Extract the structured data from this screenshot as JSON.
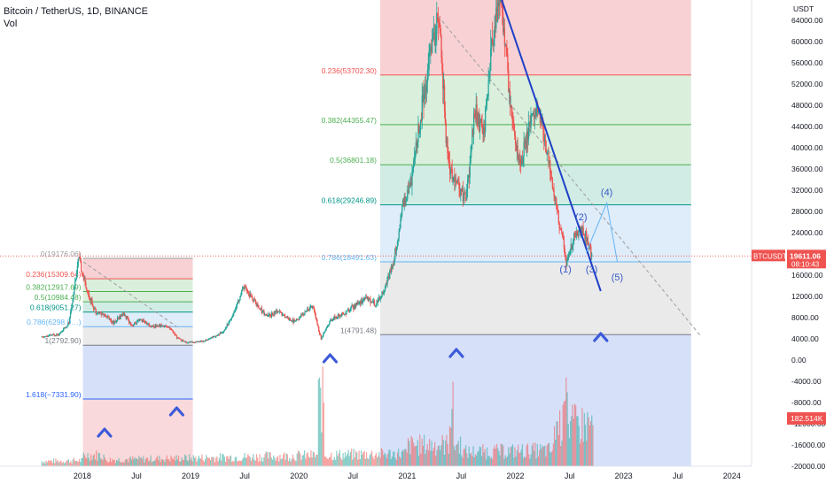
{
  "header": {
    "title": "Bitcoin / TetherUS, 1D, BINANCE",
    "vol_label": "Vol"
  },
  "colors": {
    "up": "#26a69a",
    "down": "#ef5350",
    "trendline": "#1e40c8",
    "accent": "#3d5ad9",
    "price_tag": "#ef5350",
    "volume_tag": "#ef5350",
    "fib_red": "#f6c9cc",
    "fib_green": "#d4ecd6",
    "fib_teal": "#c9e9df",
    "fib_blue": "#d9e9f8",
    "fib_gray": "#e6e6e6",
    "fib_ext": "#cfdbf8"
  },
  "chart_data": {
    "type": "candlestick",
    "symbol": "BTCUSDT",
    "interval": "1D",
    "exchange": "BINANCE",
    "y_axis_label": "USDT",
    "y_ticks": [
      "64000.00",
      "60000.00",
      "56000.00",
      "52000.00",
      "48000.00",
      "44000.00",
      "40000.00",
      "36000.00",
      "32000.00",
      "28000.00",
      "24000.00",
      "20000.00",
      "16000.00",
      "12000.00",
      "8000.00",
      "4000.00",
      "0.00",
      "-4000.00",
      "-8000.00",
      "-12000.00",
      "-16000.00",
      "-20000.00"
    ],
    "y_range": [
      -20000,
      70000
    ],
    "x_ticks": [
      "2018",
      "Jul",
      "2019",
      "Jul",
      "2020",
      "Jul",
      "2021",
      "Jul",
      "2022",
      "Jul",
      "2023",
      "Jul",
      "2024"
    ],
    "last_price": {
      "symbol": "BTCUSDT",
      "price": "19611.06",
      "countdown": "08:10:43"
    },
    "volume_label": "182.514K",
    "price_path": [
      [
        "2017-08",
        4300
      ],
      [
        "2017-10",
        5000
      ],
      [
        "2017-11",
        7000
      ],
      [
        "2017-12-17",
        19176
      ],
      [
        "2018-01",
        13000
      ],
      [
        "2018-02",
        9000
      ],
      [
        "2018-03",
        8500
      ],
      [
        "2018-04",
        7000
      ],
      [
        "2018-05",
        8800
      ],
      [
        "2018-06",
        6500
      ],
      [
        "2018-07",
        7600
      ],
      [
        "2018-08",
        6400
      ],
      [
        "2018-09",
        6500
      ],
      [
        "2018-10",
        6400
      ],
      [
        "2018-11",
        4200
      ],
      [
        "2018-12",
        3300
      ],
      [
        "2019-02",
        3600
      ],
      [
        "2019-04",
        5200
      ],
      [
        "2019-05",
        8000
      ],
      [
        "2019-06",
        12000
      ],
      [
        "2019-06-26",
        13800
      ],
      [
        "2019-08",
        10000
      ],
      [
        "2019-09",
        8200
      ],
      [
        "2019-10",
        9200
      ],
      [
        "2019-12",
        7200
      ],
      [
        "2020-02",
        10300
      ],
      [
        "2020-03-13",
        4000
      ],
      [
        "2020-04",
        7500
      ],
      [
        "2020-06",
        9400
      ],
      [
        "2020-08",
        11800
      ],
      [
        "2020-09",
        10500
      ],
      [
        "2020-10",
        13500
      ],
      [
        "2020-11",
        18500
      ],
      [
        "2020-12",
        29000
      ],
      [
        "2021-01",
        34000
      ],
      [
        "2021-02",
        46000
      ],
      [
        "2021-03",
        58000
      ],
      [
        "2021-04-14",
        64800
      ],
      [
        "2021-05",
        37000
      ],
      [
        "2021-06",
        33000
      ],
      [
        "2021-07",
        30000
      ],
      [
        "2021-08",
        47000
      ],
      [
        "2021-09",
        43000
      ],
      [
        "2021-10",
        61000
      ],
      [
        "2021-11-10",
        69000
      ],
      [
        "2021-12",
        47000
      ],
      [
        "2022-01",
        36000
      ],
      [
        "2022-02",
        44000
      ],
      [
        "2022-03",
        47000
      ],
      [
        "2022-04",
        39000
      ],
      [
        "2022-05",
        29000
      ],
      [
        "2022-06",
        20000
      ],
      [
        "2022-06-18",
        17600
      ],
      [
        "2022-07",
        23000
      ],
      [
        "2022-08-15",
        24800
      ],
      [
        "2022-09",
        19600
      ]
    ],
    "volume_note": "relative daily volume bars, peaks near 2020-03 and 2022-06",
    "fib_retracement_1": {
      "start_date": "2018-01",
      "end_date": "2018-12",
      "levels": [
        {
          "label": "0(19176.06)",
          "price": 19176.06
        },
        {
          "label": "0.236(15309.64)",
          "price": 15309.64
        },
        {
          "label": "0.382(12917.69)",
          "price": 12917.69
        },
        {
          "label": "0.5(10984.48)",
          "price": 10984.48
        },
        {
          "label": "0.618(9051.27)",
          "price": 9051.27
        },
        {
          "label": "0.786(6298.9…)",
          "price": 6298.9
        },
        {
          "label": "1(2792.90)",
          "price": 2792.9
        },
        {
          "label": "1.618(−7331.90)",
          "price": -7331.9
        }
      ]
    },
    "fib_retracement_2": {
      "start_date": "2020-07",
      "end_date": "2023-09",
      "levels": [
        {
          "label": "0.236(53702.30)",
          "price": 53702.3
        },
        {
          "label": "0.382(44355.47)",
          "price": 44355.47
        },
        {
          "label": "0.5(36801.18)",
          "price": 36801.18
        },
        {
          "label": "0.618(29246.89)",
          "price": 29246.89
        },
        {
          "label": "0.786(18491.63)",
          "price": 18491.63
        },
        {
          "label": "1(4791.48)",
          "price": 4791.48
        }
      ]
    },
    "elliott_labels": [
      {
        "label": "(1)",
        "date": "2022-06-18",
        "price": 16500
      },
      {
        "label": "(2)",
        "date": "2022-08-10",
        "price": 26300
      },
      {
        "label": "(3)",
        "date": "2022-09-15",
        "price": 16500
      },
      {
        "label": "(4)",
        "date": "2022-11-05",
        "price": 31000
      },
      {
        "label": "(5)",
        "date": "2022-12-10",
        "price": 15000
      }
    ],
    "projection_path": [
      [
        "2022-08-28",
        20400
      ],
      [
        "2022-11-05",
        29600
      ],
      [
        "2022-12-10",
        18500
      ]
    ],
    "trendline": [
      [
        "2021-11-10",
        68800
      ],
      [
        "2022-10-15",
        13000
      ]
    ],
    "diagonal_dashed": [
      [
        "2017-12-17",
        19176
      ],
      [
        "2018-11",
        6300
      ]
    ],
    "diagonal_dashed_2": [
      [
        "2021-04-14",
        64800
      ],
      [
        "2023-09",
        4700
      ]
    ],
    "markers": [
      "2018-03",
      "2018-11",
      "2020-04",
      "2021-06",
      "2022-10"
    ],
    "x_range": [
      "2017-08",
      "2024-02"
    ]
  }
}
